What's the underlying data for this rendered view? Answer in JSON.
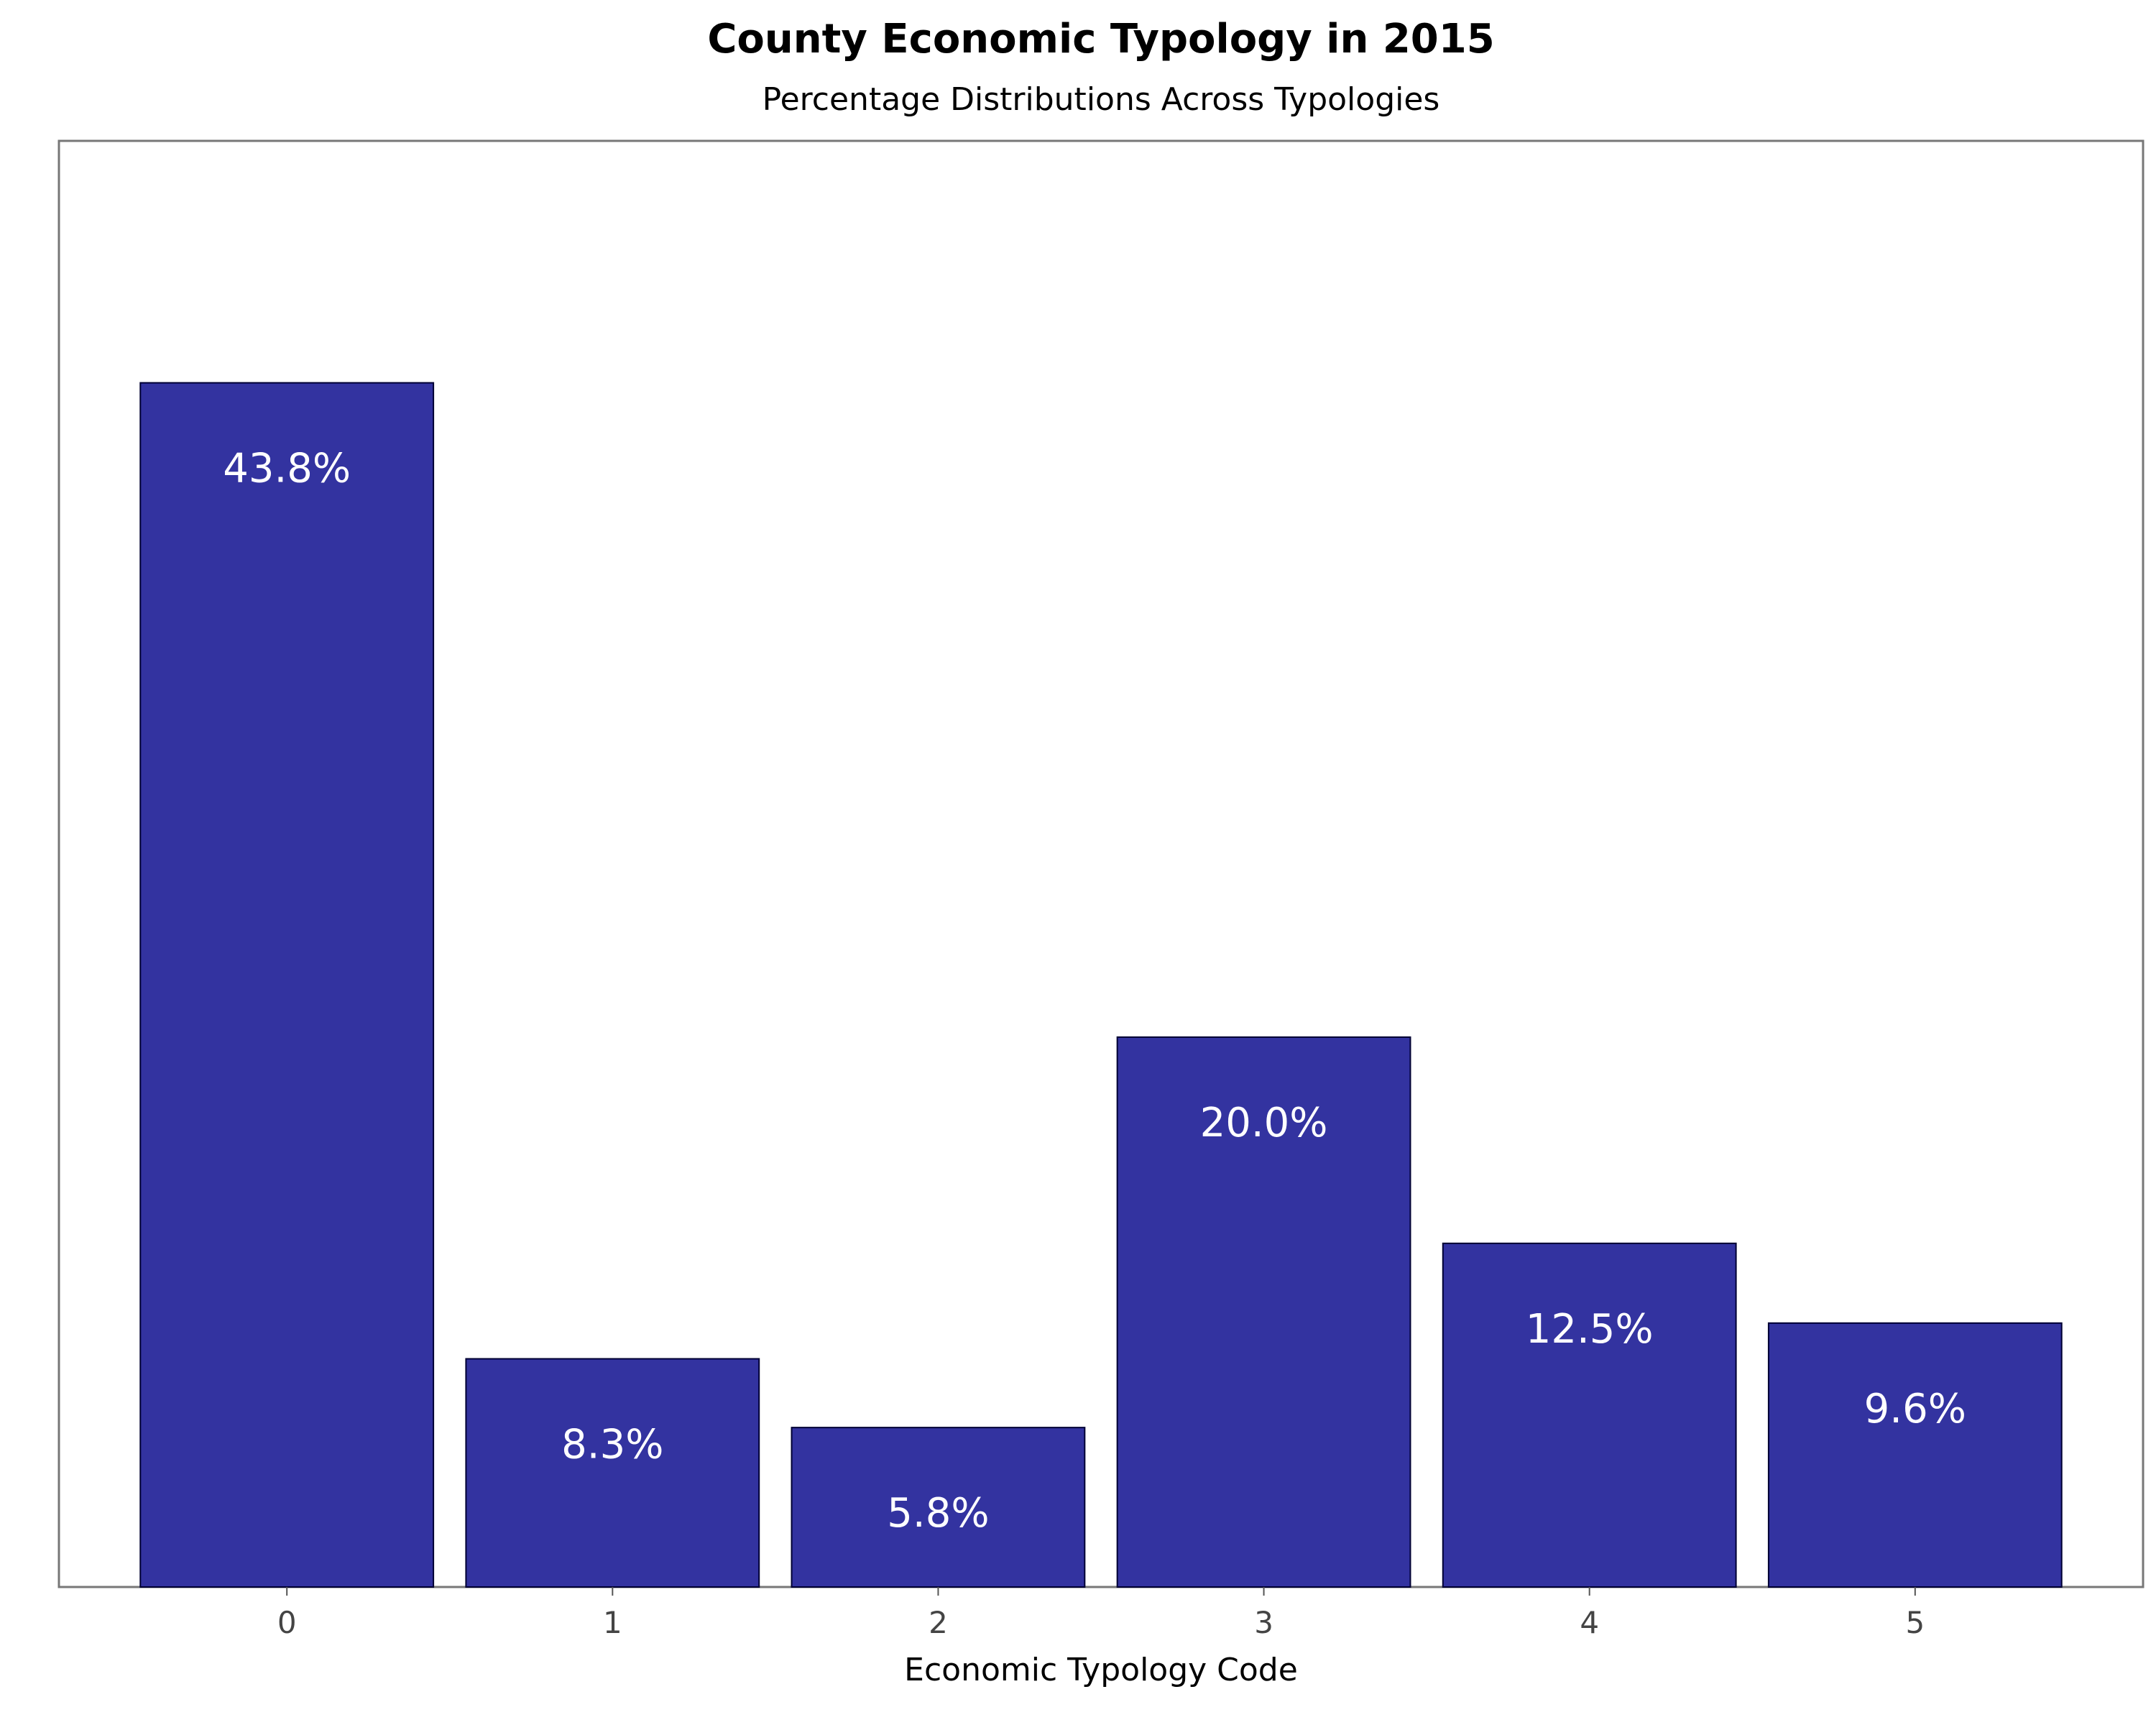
{
  "chart_data": {
    "type": "bar",
    "title": "County Economic Typology in 2015",
    "subtitle": "Percentage Distributions Across Typologies",
    "xlabel": "Economic Typology Code",
    "ylabel": "",
    "categories": [
      "0",
      "1",
      "2",
      "3",
      "4",
      "5"
    ],
    "values": [
      43.8,
      8.3,
      5.8,
      20.0,
      12.5,
      9.6
    ],
    "data_labels": [
      "43.8%",
      "8.3%",
      "5.8%",
      "20.0%",
      "12.5%",
      "9.6%"
    ],
    "ylim": [
      0,
      52.6
    ],
    "y_ticks_visible": false,
    "grid": false,
    "legend": "none",
    "colors": {
      "bar_fill": "#3333a0",
      "bar_edge": "#000033",
      "frame": "#777777",
      "data_label": "#ffffff"
    }
  }
}
